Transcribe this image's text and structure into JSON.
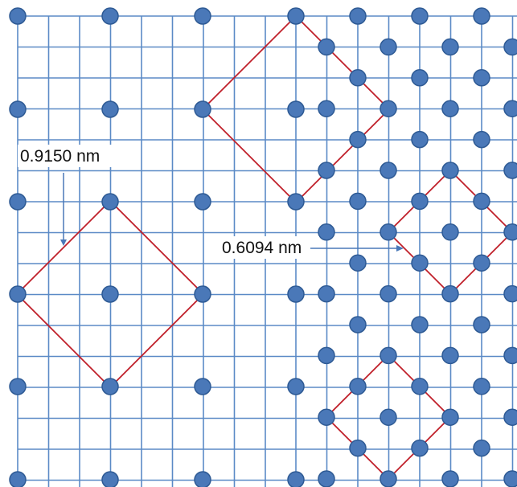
{
  "labels": {
    "large_cell_spacing": "0.9150 nm",
    "small_cell_spacing": "0.6094 nm"
  },
  "colors": {
    "grid_line": "#5b8ac6",
    "atom_fill": "#4a78b8",
    "atom_stroke": "#2e5a94",
    "cell_outline": "#c0202a",
    "arrow": "#4a78b8",
    "label_text": "#111111"
  }
}
